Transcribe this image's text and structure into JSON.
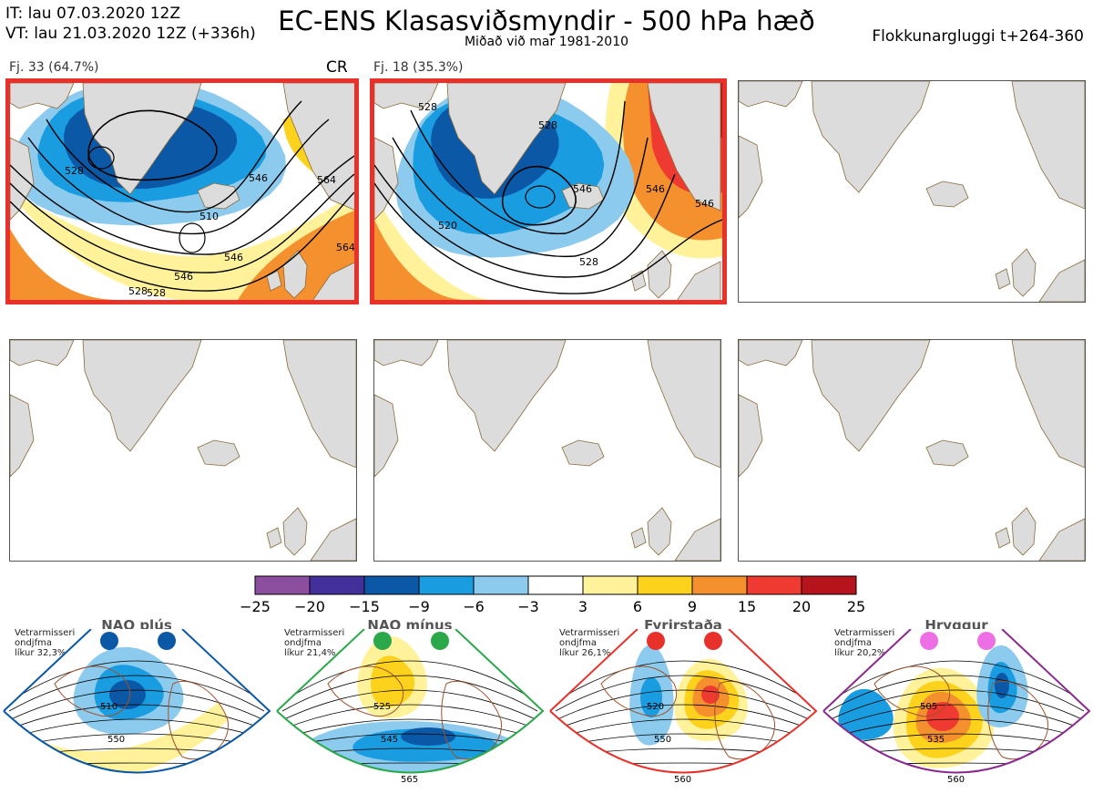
{
  "header": {
    "it_line": "IT: lau 07.03.2020 12Z",
    "vt_line": "VT: lau 21.03.2020 12Z  (+336h)",
    "title": "EC-ENS Klasasviðsmyndir - 500 hPa hæð",
    "subtitle": "Miðað við mar 1981-2010",
    "window": "Flokkunargluggi t+264-360"
  },
  "panels": [
    {
      "label": "Fj. 33 (64.7%)",
      "tag": "CR",
      "highlighted": true,
      "contour_labels": [
        "528",
        "510",
        "528",
        "546",
        "528",
        "546",
        "564",
        "546",
        "564"
      ]
    },
    {
      "label": "Fj. 18 (35.3%)",
      "tag": "",
      "highlighted": true,
      "contour_labels": [
        "528",
        "528",
        "546",
        "520",
        "528",
        "546",
        "546"
      ]
    },
    {
      "label": "",
      "tag": "",
      "highlighted": false,
      "contour_labels": []
    },
    {
      "label": "",
      "tag": "",
      "highlighted": false,
      "contour_labels": []
    },
    {
      "label": "",
      "tag": "",
      "highlighted": false,
      "contour_labels": []
    },
    {
      "label": "",
      "tag": "",
      "highlighted": false,
      "contour_labels": []
    }
  ],
  "colorbar": {
    "ticks": [
      "−25",
      "−20",
      "−15",
      "−9",
      "−6",
      "−3",
      "3",
      "6",
      "9",
      "15",
      "20",
      "25"
    ],
    "colors": [
      "#8c4fa0",
      "#43309a",
      "#0a58a6",
      "#1a9ce0",
      "#8ccbee",
      "#ffffff",
      "#fff29a",
      "#fcd21c",
      "#f5902f",
      "#ee3a31",
      "#b5141c"
    ]
  },
  "regimes": [
    {
      "title": "NAO plús",
      "note": [
        "Vetrarmisseri",
        "ondjfma",
        "líkur 32,3%"
      ],
      "frame_color": "#0a58a6",
      "dot_color": "#0a58a6",
      "contour_labels": [
        "510",
        "550"
      ]
    },
    {
      "title": "NAO mínus",
      "note": [
        "Vetrarmisseri",
        "ondjfma",
        "líkur 21,4%"
      ],
      "frame_color": "#2aa84a",
      "dot_color": "#2aa84a",
      "contour_labels": [
        "525",
        "545",
        "565"
      ]
    },
    {
      "title": "Fyrirstaða",
      "note": [
        "Vetrarmisseri",
        "ondjfma",
        "líkur 26,1%"
      ],
      "frame_color": "#e8312b",
      "dot_color": "#e8312b",
      "contour_labels": [
        "520",
        "550",
        "560"
      ]
    },
    {
      "title": "Hryggur",
      "note": [
        "Vetrarmisseri",
        "ondjfma",
        "líkur 20,2%"
      ],
      "frame_color": "#8a2a8f",
      "dot_color": "#ee6ee6",
      "contour_labels": [
        "505",
        "535",
        "560"
      ]
    }
  ]
}
